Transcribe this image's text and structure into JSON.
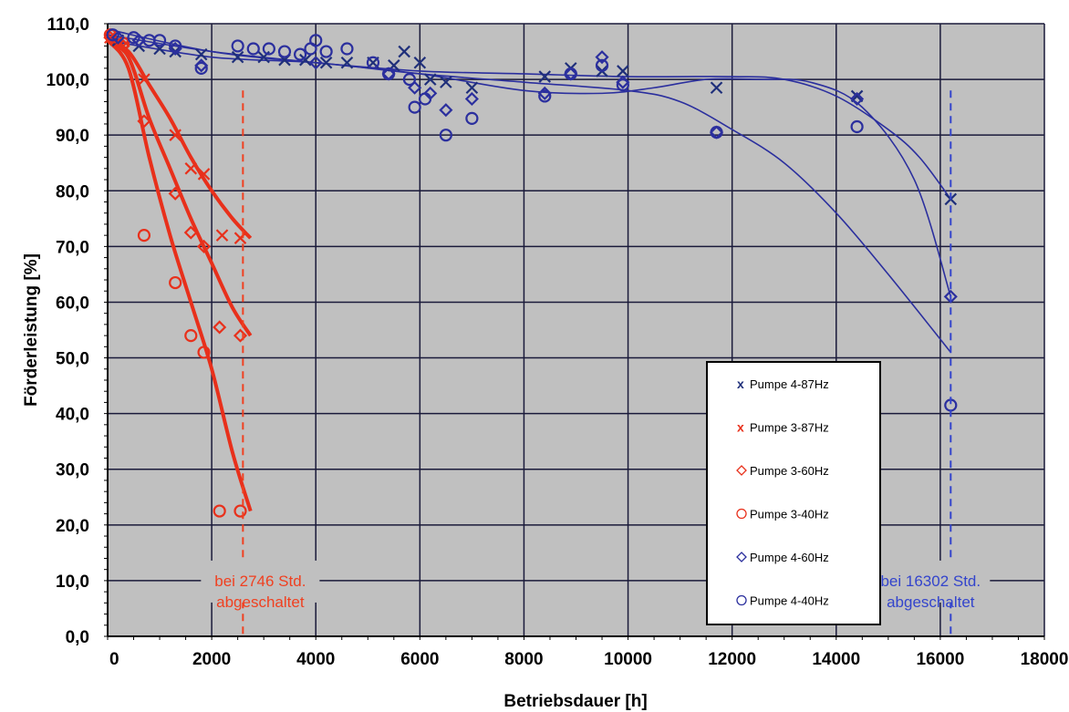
{
  "chart_data": {
    "type": "scatter",
    "xlabel": "Betriebsdauer [h]",
    "ylabel": "Förderleistung [%]",
    "xlim": [
      0,
      18000
    ],
    "ylim": [
      0,
      110
    ],
    "x_ticks": [
      "0",
      "2000",
      "4000",
      "6000",
      "8000",
      "10000",
      "12000",
      "14000",
      "16000",
      "18000"
    ],
    "y_ticks": [
      "0,0",
      "10,0",
      "20,0",
      "30,0",
      "40,0",
      "50,0",
      "60,0",
      "70,0",
      "80,0",
      "90,0",
      "100,0",
      "110,0"
    ],
    "grid": true,
    "legend_position": "lower-right",
    "colors": {
      "plot_bg": "#c0c0c0",
      "grid": "#1a1a3a",
      "blue": "#2b2f9e",
      "red": "#e8301b",
      "red_text": "#f04020",
      "blue_text": "#3344cc"
    },
    "series": [
      {
        "name": "Pumpe 4-87Hz",
        "marker": "x",
        "color": "#1f2f7a",
        "x": [
          200,
          600,
          1000,
          1300,
          1800,
          2500,
          3000,
          3400,
          3800,
          4200,
          4600,
          5100,
          5500,
          5700,
          6000,
          6200,
          6500,
          7000,
          8400,
          8900,
          9500,
          9900,
          11700,
          14400,
          16200
        ],
        "y": [
          107,
          106,
          105.5,
          105,
          104.5,
          104,
          104,
          103.5,
          103.5,
          103,
          103,
          103,
          102.5,
          105,
          103,
          100,
          99.5,
          98.5,
          100.5,
          102,
          101.5,
          101.5,
          98.5,
          97,
          78.5
        ]
      },
      {
        "name": "Pumpe 3-87Hz",
        "marker": "x",
        "color": "#e8301b",
        "x": [
          50,
          300,
          700,
          1300,
          1600,
          1850,
          2200,
          2550
        ],
        "y": [
          107.5,
          106,
          100,
          90,
          84,
          83,
          72,
          71.5
        ]
      },
      {
        "name": "Pumpe 3-60Hz",
        "marker": "diamond",
        "color": "#e8301b",
        "x": [
          50,
          300,
          700,
          1300,
          1600,
          1850,
          2150,
          2550
        ],
        "y": [
          107.5,
          106,
          92.5,
          79.5,
          72.5,
          70,
          55.5,
          54
        ]
      },
      {
        "name": "Pumpe 3-40Hz",
        "marker": "circle",
        "color": "#e8301b",
        "x": [
          50,
          300,
          700,
          1300,
          1600,
          1850,
          2150,
          2550
        ],
        "y": [
          108,
          106.5,
          72,
          63.5,
          54,
          51,
          22.5,
          22.5
        ]
      },
      {
        "name": "Pumpe 4-60Hz",
        "marker": "diamond",
        "color": "#2b2f9e",
        "x": [
          200,
          600,
          1300,
          1800,
          4000,
          5400,
          5900,
          6200,
          6500,
          7000,
          8400,
          8900,
          9500,
          9900,
          11700,
          14400,
          16200
        ],
        "y": [
          107.5,
          107,
          105.5,
          102.5,
          103,
          101,
          98.5,
          97.5,
          94.5,
          96.5,
          97.5,
          101,
          104,
          99.5,
          90.5,
          96.5,
          61
        ]
      },
      {
        "name": "Pumpe 4-40Hz",
        "marker": "circle",
        "color": "#2b2f9e",
        "x": [
          100,
          500,
          800,
          1000,
          1300,
          1800,
          2500,
          2800,
          3100,
          3400,
          3700,
          3900,
          4000,
          4200,
          4600,
          5100,
          5400,
          5800,
          5900,
          6100,
          6500,
          7000,
          8400,
          8900,
          9500,
          9900,
          11700,
          14400,
          16200
        ],
        "y": [
          108,
          107.5,
          107,
          107,
          106,
          102,
          106,
          105.5,
          105.5,
          105,
          104.5,
          105.5,
          107,
          105,
          105.5,
          103,
          101,
          100,
          95,
          96.5,
          90,
          93,
          97,
          101,
          102.5,
          99,
          90.5,
          91.5,
          41.5
        ]
      }
    ],
    "trend_lines": [
      {
        "color": "#e8301b",
        "x": [
          0,
          400,
          800,
          1200,
          1600,
          2000,
          2400,
          2746
        ],
        "y": [
          107,
          105,
          99,
          93,
          86,
          80,
          75,
          71.5
        ]
      },
      {
        "color": "#e8301b",
        "x": [
          0,
          400,
          800,
          1200,
          1600,
          2000,
          2400,
          2746
        ],
        "y": [
          107,
          104,
          93,
          84,
          75,
          67,
          59,
          54
        ]
      },
      {
        "color": "#e8301b",
        "x": [
          0,
          400,
          800,
          1200,
          1600,
          2000,
          2400,
          2746
        ],
        "y": [
          107,
          102,
          86,
          72,
          60,
          48,
          33,
          22.5
        ]
      },
      {
        "color": "#2b2f9e",
        "x": [
          0,
          2000,
          4000,
          6000,
          8000,
          10000,
          12000,
          13000,
          14000,
          15000,
          15600,
          16200
        ],
        "y": [
          109,
          105,
          103,
          101.5,
          101,
          100.5,
          100.5,
          100,
          97,
          91,
          86,
          78.5
        ]
      },
      {
        "color": "#2b2f9e",
        "x": [
          0,
          2000,
          4000,
          6000,
          8000,
          9500,
          10500,
          11500,
          12500,
          13500,
          14500,
          15500,
          16200
        ],
        "y": [
          108,
          105,
          103,
          101,
          98,
          97.5,
          98.5,
          100,
          100,
          99.5,
          95,
          82,
          61
        ]
      },
      {
        "color": "#2b2f9e",
        "x": [
          0,
          2000,
          4000,
          6000,
          8000,
          10000,
          11000,
          12000,
          13000,
          14000,
          15000,
          16200
        ],
        "y": [
          107,
          104,
          103,
          101,
          99.5,
          98,
          96,
          91,
          85,
          76,
          65,
          51
        ]
      }
    ],
    "annotations": [
      {
        "text_line1": "bei 2746 Std.",
        "text_line2": "abgeschaltet",
        "x": 2600,
        "color": "#f04020"
      },
      {
        "text_line1": "bei 16302 Std.",
        "text_line2": "abgeschaltet",
        "x": 16200,
        "color": "#3344cc"
      }
    ]
  }
}
